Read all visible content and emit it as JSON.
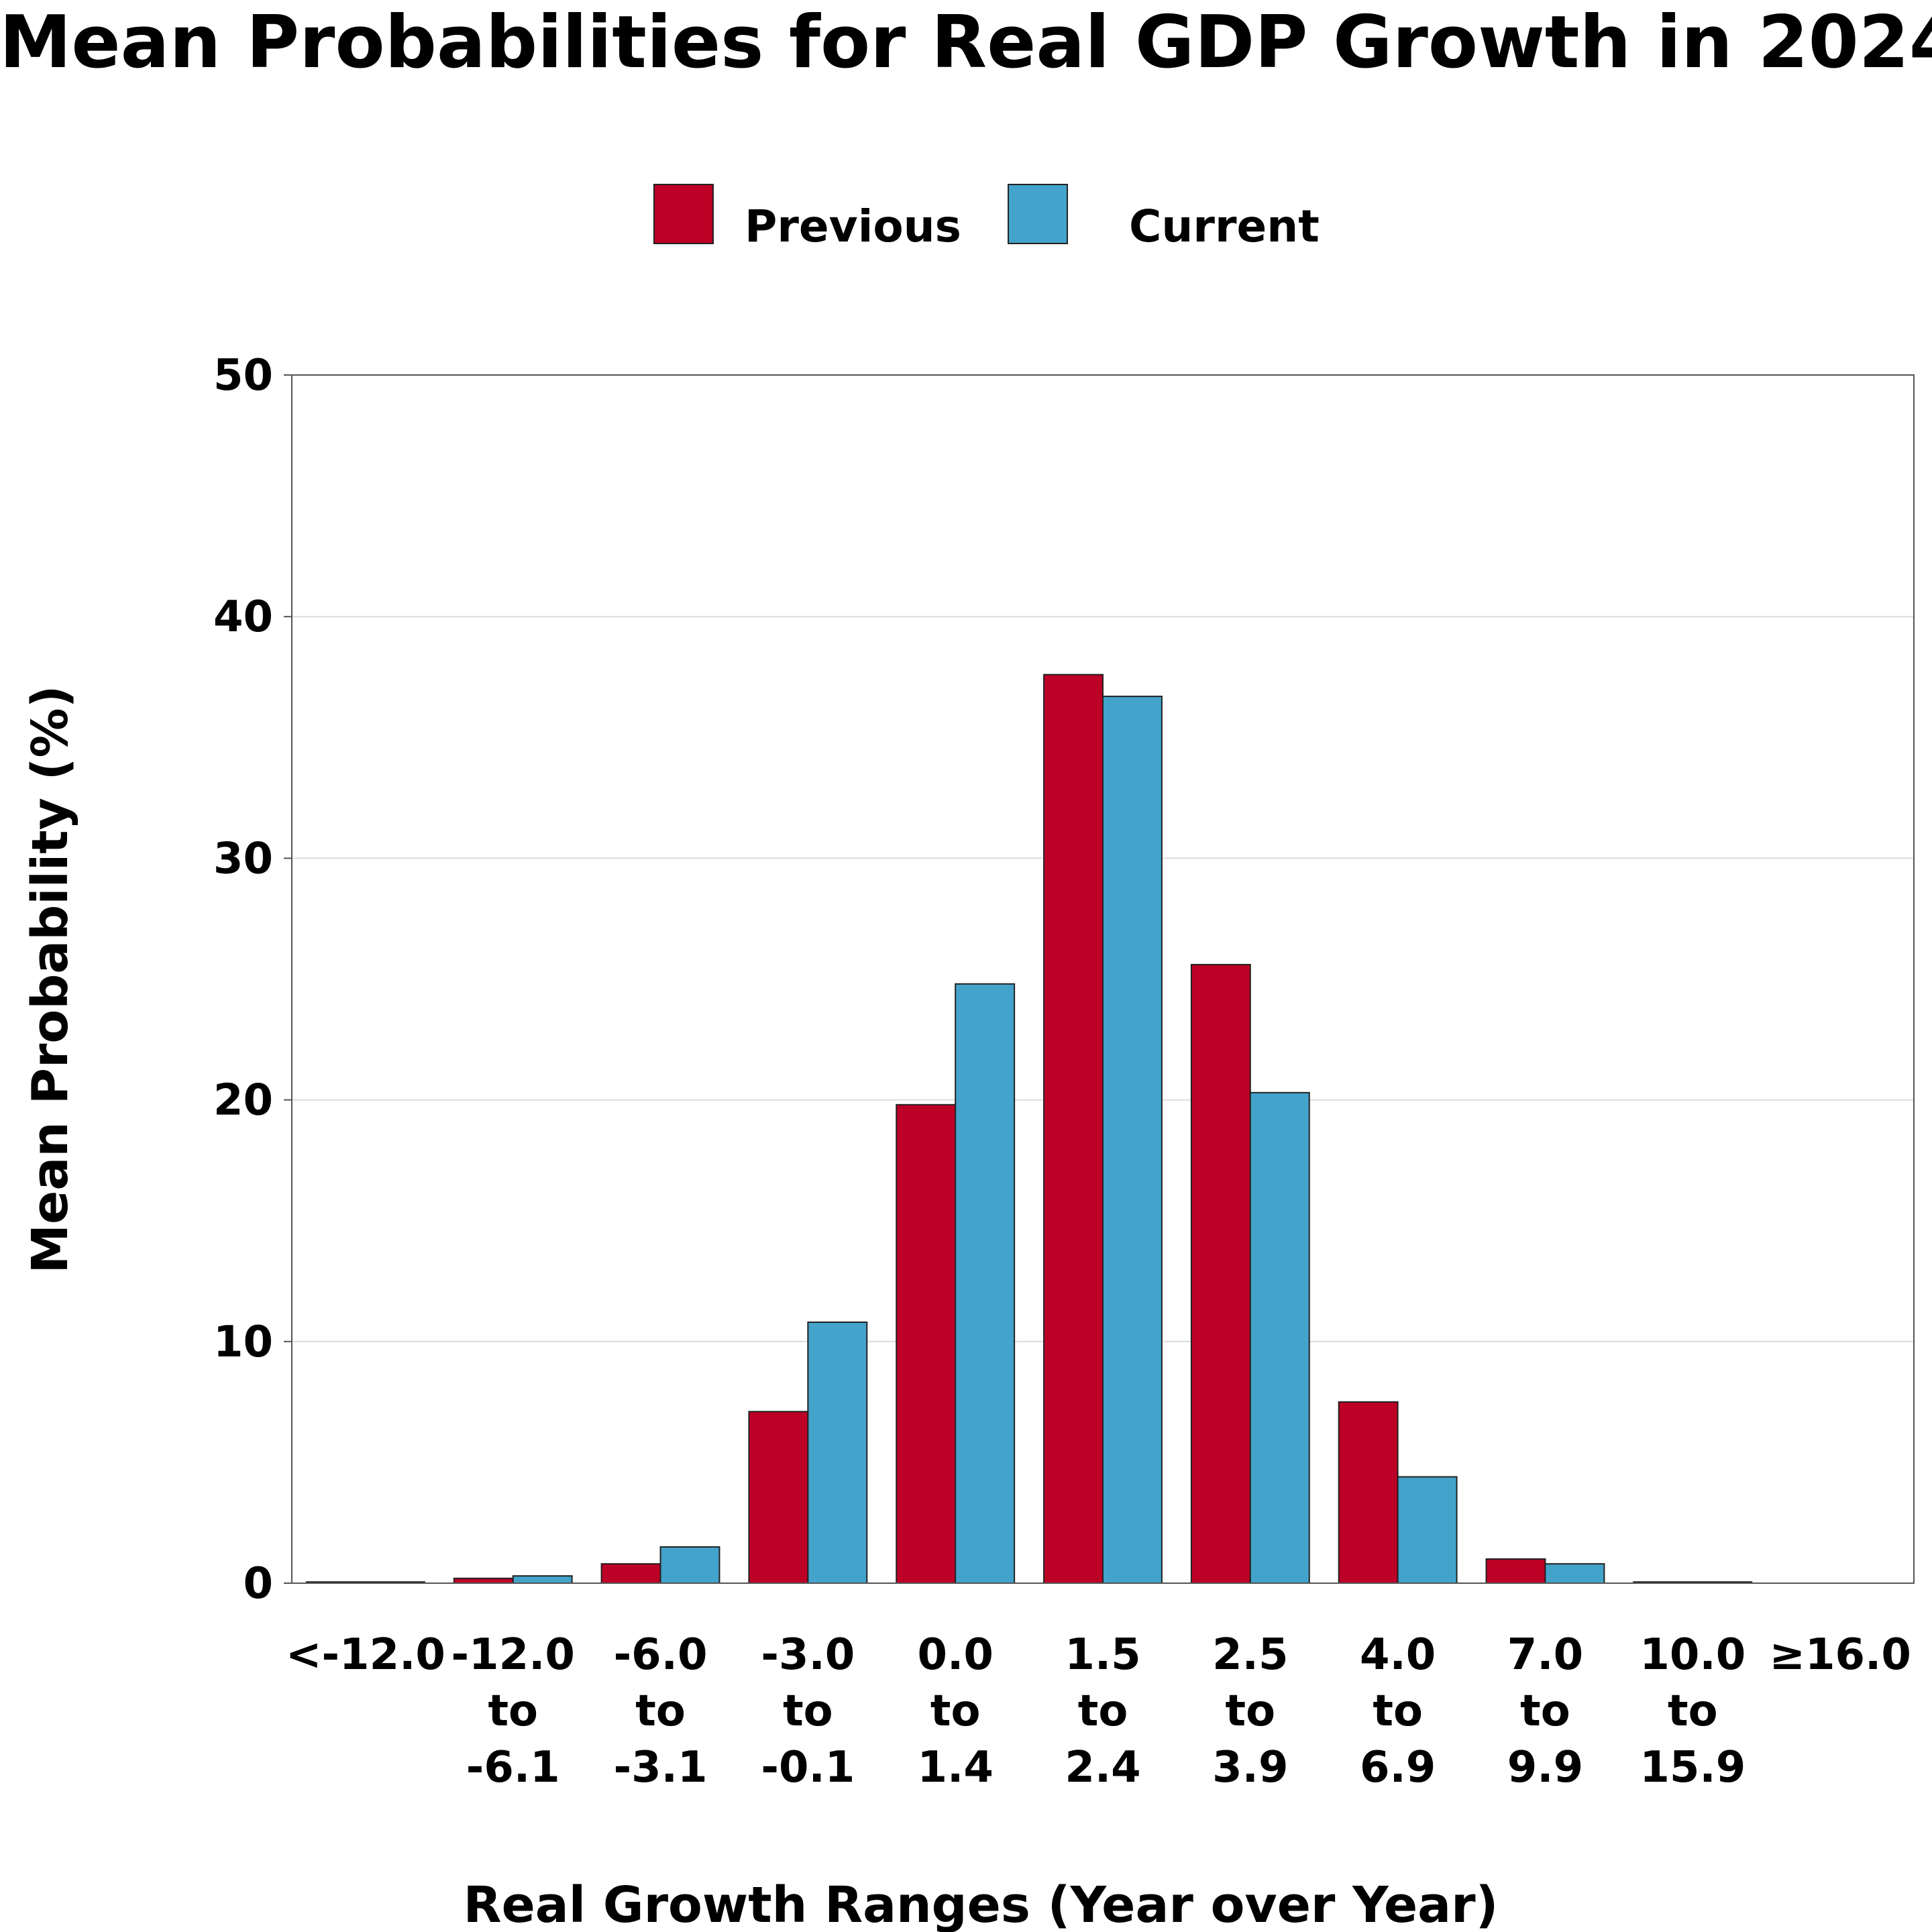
{
  "chart_data": {
    "type": "bar",
    "title": "Mean Probabilities for Real GDP Growth in 2024",
    "xlabel": "Real Growth Ranges (Year over Year)",
    "ylabel": "Mean Probability (%)",
    "ylim": [
      0,
      50
    ],
    "yticks": [
      0,
      10,
      20,
      30,
      40,
      50
    ],
    "grid": true,
    "legend_position": "top-center",
    "categories": [
      [
        "<-12.0"
      ],
      [
        "-12.0",
        "to",
        "-6.1"
      ],
      [
        "-6.0",
        "to",
        "-3.1"
      ],
      [
        "-3.0",
        "to",
        "-0.1"
      ],
      [
        "0.0",
        "to",
        "1.4"
      ],
      [
        "1.5",
        "to",
        "2.4"
      ],
      [
        "2.5",
        "to",
        "3.9"
      ],
      [
        "4.0",
        "to",
        "6.9"
      ],
      [
        "7.0",
        "to",
        "9.9"
      ],
      [
        "10.0",
        "to",
        "15.9"
      ],
      [
        "≥16.0"
      ]
    ],
    "series": [
      {
        "name": "Previous",
        "color": "#BD0026",
        "values": [
          0.05,
          0.2,
          0.8,
          7.1,
          19.8,
          37.6,
          25.6,
          7.5,
          1.0,
          0.05,
          0.0
        ]
      },
      {
        "name": "Current",
        "color": "#43A3CB",
        "values": [
          0.05,
          0.3,
          1.5,
          10.8,
          24.8,
          36.7,
          20.3,
          4.4,
          0.8,
          0.05,
          0.0
        ]
      }
    ]
  }
}
